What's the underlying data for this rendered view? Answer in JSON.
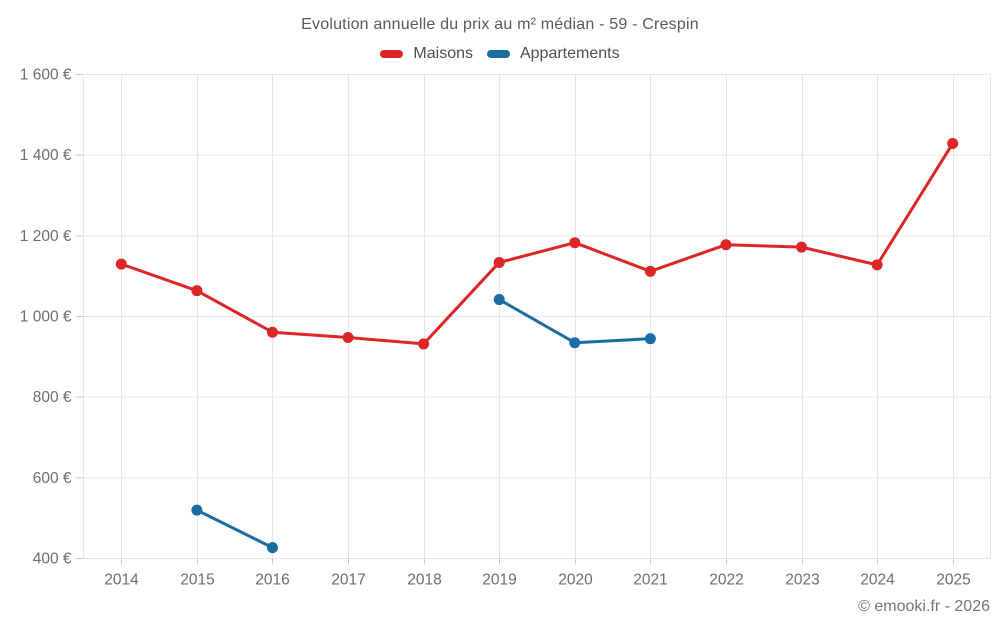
{
  "title": "Evolution annuelle du prix au m² médian - 59 - Crespin",
  "legend": {
    "items": [
      {
        "label": "Maisons",
        "color": "#dd2627"
      },
      {
        "label": "Appartements",
        "color": "#1a6ca3"
      }
    ]
  },
  "footer": {
    "copyright": "© emooki.fr - 2026"
  },
  "chart_data": {
    "type": "line",
    "title": "Evolution annuelle du prix au m² médian - 59 - Crespin",
    "x": [
      2014,
      2015,
      2016,
      2017,
      2018,
      2019,
      2020,
      2021,
      2022,
      2023,
      2024,
      2025
    ],
    "series": [
      {
        "name": "Maisons",
        "color": "#dd2627",
        "values": [
          1130,
          1064,
          961,
          948,
          932,
          1134,
          1183,
          1112,
          1178,
          1172,
          1128,
          1429
        ]
      },
      {
        "name": "Appartements",
        "color": "#1a6ca3",
        "values": [
          null,
          520,
          427,
          null,
          null,
          1042,
          935,
          945,
          null,
          null,
          null,
          null
        ]
      }
    ],
    "xlabel": "",
    "ylabel": "",
    "ylim": [
      400,
      1600
    ],
    "ytick_step": 200,
    "y_suffix": " €",
    "grid": true,
    "legend_position": "top",
    "colors": {
      "grid": "#e6e6e6",
      "tick": "#c9c9c9",
      "axis_label": "#6e6e6e"
    }
  }
}
